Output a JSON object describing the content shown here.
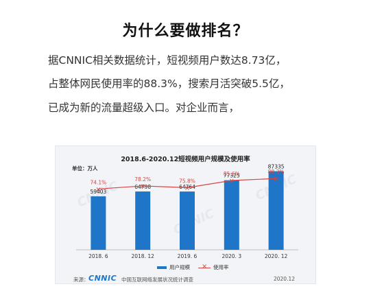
{
  "heading": "为什么要做排名？",
  "paragraph": {
    "line1": "据CNNIC相关数据统计，短视频用户数达8.73亿，",
    "line2": "占整体网民使用率的88.3%，搜索月活突破5.5亿，",
    "line3": "已成为新的流量超级入口。对企业而言，"
  },
  "chart_data": {
    "type": "bar",
    "title": "2018.6-2020.12短视频用户规模及使用率",
    "unit_label": "单位：万人",
    "categories": [
      "2018. 6",
      "2018. 12",
      "2019. 6",
      "2020. 3",
      "2020. 12"
    ],
    "series": [
      {
        "name": "用户规模",
        "type": "bar",
        "color": "#1f75c7",
        "values": [
          59403,
          64798,
          64764,
          77325,
          87335
        ],
        "labels": [
          "59403",
          "64798",
          "64764",
          "77325",
          "87335"
        ]
      },
      {
        "name": "使用率",
        "type": "line",
        "color": "#d64541",
        "values": [
          74.1,
          78.2,
          75.8,
          85.6,
          88.3
        ],
        "labels": [
          "74.1%",
          "78.2%",
          "75.8%",
          "85.6%",
          "88.3%"
        ]
      }
    ],
    "legend_position": "bottom",
    "grid": false,
    "ylim": [
      0,
      90000
    ],
    "y2lim": [
      20,
      95
    ]
  },
  "footer": {
    "source_label": "来源：",
    "logo_text": "CNNIC",
    "report_name": "中国互联网络发展状况统计调查",
    "date": "2020.12"
  }
}
